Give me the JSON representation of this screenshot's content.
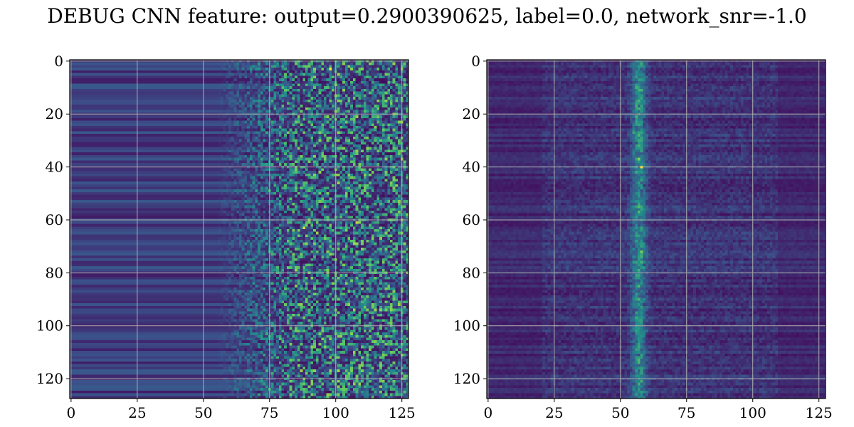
{
  "title": "DEBUG CNN feature: output=0.2900390625, label=0.0, network_snr=-1.0",
  "chart_data": [
    {
      "type": "heatmap",
      "title": "",
      "xlabel": "",
      "ylabel": "",
      "grid": true,
      "colormap": "viridis",
      "colormap_stops": [
        "#440154",
        "#3b528b",
        "#21918c",
        "#5ec962",
        "#fde725"
      ],
      "shape": [
        128,
        128
      ],
      "xlim": [
        -0.5,
        127.5
      ],
      "ylim": [
        127.5,
        -0.5
      ],
      "xticks": [
        0,
        25,
        50,
        75,
        100,
        125
      ],
      "xtick_labels": [
        "0",
        "25",
        "50",
        "75",
        "100",
        "125"
      ],
      "yticks": [
        0,
        20,
        40,
        60,
        80,
        100,
        120
      ],
      "ytick_labels": [
        "0",
        "20",
        "40",
        "60",
        "80",
        "100",
        "120"
      ],
      "pattern": "horizontal bands in columns 0-60, noisy high-intensity speckle in columns 75-127",
      "hotspots": [
        {
          "x": 98,
          "y": 3,
          "value": 1.0
        },
        {
          "x": 88,
          "y": 63,
          "value": 0.95
        },
        {
          "x": 108,
          "y": 61,
          "value": 0.9
        },
        {
          "x": 90,
          "y": 43,
          "value": 0.7
        },
        {
          "x": 103,
          "y": 103,
          "value": 0.65
        }
      ]
    },
    {
      "type": "heatmap",
      "title": "",
      "xlabel": "",
      "ylabel": "",
      "grid": true,
      "colormap": "viridis",
      "colormap_stops": [
        "#440154",
        "#3b528b",
        "#21918c",
        "#5ec962",
        "#fde725"
      ],
      "shape": [
        128,
        128
      ],
      "xlim": [
        -0.5,
        127.5
      ],
      "ylim": [
        127.5,
        -0.5
      ],
      "xticks": [
        0,
        25,
        50,
        75,
        100,
        125
      ],
      "xtick_labels": [
        "0",
        "25",
        "50",
        "75",
        "100",
        "125"
      ],
      "yticks": [
        0,
        20,
        40,
        60,
        80,
        100,
        120
      ],
      "ytick_labels": [
        "0",
        "20",
        "40",
        "60",
        "80",
        "100",
        "120"
      ],
      "pattern": "dark background with a bright vertical band around column 57",
      "hotspots": [
        {
          "x": 58,
          "y": 40,
          "value": 1.0
        },
        {
          "x": 57,
          "y": 37,
          "value": 0.8
        },
        {
          "x": 58,
          "y": 72,
          "value": 0.8
        },
        {
          "x": 57,
          "y": 15,
          "value": 0.65
        },
        {
          "x": 55,
          "y": 27,
          "value": 0.6
        }
      ]
    }
  ]
}
